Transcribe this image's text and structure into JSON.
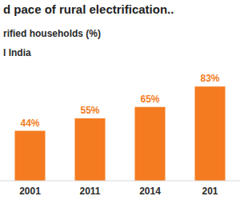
{
  "chart_data": {
    "type": "bar",
    "title": "d pace of rural electrification..",
    "subtitle": "rified households (%)",
    "categories": [
      "2001",
      "2011",
      "2014",
      "201"
    ],
    "series": [
      {
        "name": "l India",
        "color": "#f47b20",
        "values": [
          44,
          55,
          65,
          83
        ],
        "value_labels": [
          "44%",
          "55%",
          "65%",
          "83%"
        ]
      }
    ],
    "ylim": [
      0,
      100
    ],
    "data_labels": true,
    "tick_labels": "x",
    "legend": "top-left",
    "grid": false
  }
}
